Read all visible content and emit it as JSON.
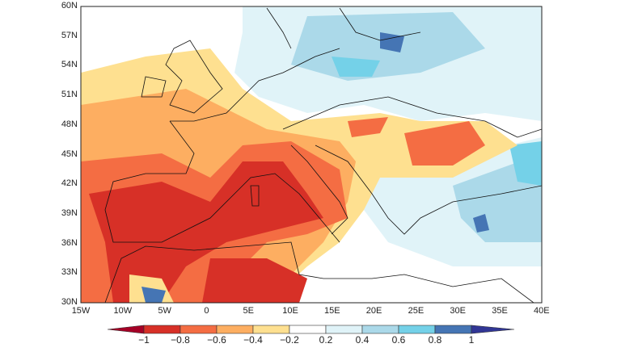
{
  "map": {
    "lon_labels": [
      "15W",
      "10W",
      "5W",
      "0",
      "5E",
      "10E",
      "15E",
      "20E",
      "25E",
      "30E",
      "35E",
      "40E"
    ],
    "lat_labels": [
      "30N",
      "33N",
      "36N",
      "39N",
      "42N",
      "45N",
      "48N",
      "51N",
      "54N",
      "57N",
      "60N"
    ],
    "extent": {
      "lon": [
        -15,
        40
      ],
      "lat": [
        30,
        60
      ]
    }
  },
  "colorbar": {
    "labels": [
      "−1",
      "−0.8",
      "−0.6",
      "−0.4",
      "−0.2",
      "0.2",
      "0.4",
      "0.6",
      "0.8",
      "1"
    ],
    "colors": [
      "#a50026",
      "#d73027",
      "#f46d43",
      "#fdae61",
      "#fee090",
      "#ffffff",
      "#e0f3f8",
      "#abd9e9",
      "#74d1e8",
      "#4575b4",
      "#313695"
    ]
  }
}
